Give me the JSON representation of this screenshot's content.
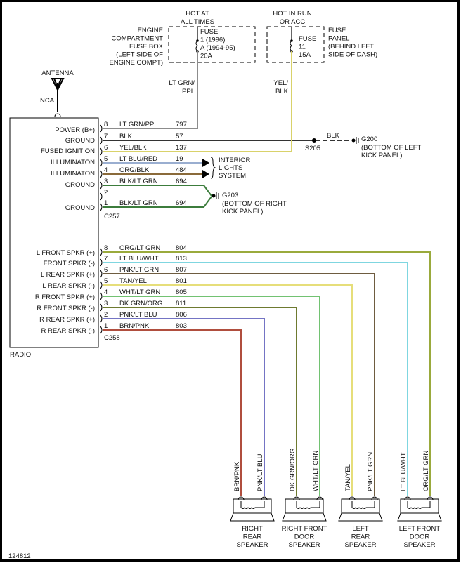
{
  "hot_at_all_times": [
    "HOT AT",
    "ALL TIMES"
  ],
  "hot_in_run": [
    "HOT IN RUN",
    "OR ACC"
  ],
  "engine_fuse_box": {
    "location": [
      "ENGINE",
      "COMPARTMENT",
      "FUSE BOX",
      "(LEFT SIDE OF",
      "ENGINE COMPT)"
    ],
    "fuse": [
      "FUSE",
      "1  (1996)",
      "A  (1994-95)",
      "20A"
    ]
  },
  "fuse_panel": {
    "location": [
      "FUSE",
      "PANEL",
      "(BEHIND LEFT",
      "SIDE OF DASH)"
    ],
    "fuse": [
      "FUSE",
      "11",
      "15A"
    ]
  },
  "feed_labels": {
    "power": [
      "LT GRN/",
      "PPL"
    ],
    "ignition": [
      "YEL/",
      "BLK"
    ]
  },
  "antenna": {
    "label": "ANTENNA",
    "note": "NCA"
  },
  "radio_label": "RADIO",
  "c257": {
    "connector": "C257",
    "pins": [
      {
        "pin": "8",
        "function": "POWER (B+)",
        "color": "LT GRN/PPL",
        "circuit": "797",
        "stroke": "#8c8c8c"
      },
      {
        "pin": "7",
        "function": "GROUND",
        "color": "BLK",
        "circuit": "57",
        "stroke": "#333333"
      },
      {
        "pin": "6",
        "function": "FUSED IGNITION",
        "color": "YEL/BLK",
        "circuit": "137",
        "stroke": "#d9d26a"
      },
      {
        "pin": "5",
        "function": "ILLUMINATON",
        "color": "LT BLU/RED",
        "circuit": "19",
        "stroke": "#9aaed0"
      },
      {
        "pin": "4",
        "function": "ILLUMINATON",
        "color": "ORG/BLK",
        "circuit": "484",
        "stroke": "#8a6a3a"
      },
      {
        "pin": "3",
        "function": "GROUND",
        "color": "BLK/LT GRN",
        "circuit": "694",
        "stroke": "#3c7c3c"
      },
      {
        "pin": "2",
        "function": "",
        "color": "",
        "circuit": "",
        "stroke": ""
      },
      {
        "pin": "1",
        "function": "GROUND",
        "color": "BLK/LT GRN",
        "circuit": "694",
        "stroke": "#3c7c3c"
      }
    ]
  },
  "splice": {
    "id": "S205",
    "wire": "BLK"
  },
  "g200": {
    "id": "G200",
    "location": [
      "(BOTTOM OF LEFT",
      "KICK PANEL)"
    ]
  },
  "g203": {
    "id": "G203",
    "location": [
      "(BOTTOM OF RIGHT",
      "KICK PANEL)"
    ]
  },
  "interior_lights": [
    "INTERIOR",
    "LIGHTS",
    "SYSTEM"
  ],
  "c258": {
    "connector": "C258",
    "pins": [
      {
        "pin": "8",
        "function": "L FRONT SPKR (+)",
        "color": "ORG/LT GRN",
        "circuit": "804",
        "stroke": "#9aaa3c"
      },
      {
        "pin": "7",
        "function": "L FRONT SPKR (-)",
        "color": "LT BLU/WHT",
        "circuit": "813",
        "stroke": "#7fd6e0"
      },
      {
        "pin": "6",
        "function": "L REAR SPKR (+)",
        "color": "PNK/LT GRN",
        "circuit": "807",
        "stroke": "#6e5c40"
      },
      {
        "pin": "5",
        "function": "L REAR SPKR (-)",
        "color": "TAN/YEL",
        "circuit": "801",
        "stroke": "#e6de7a"
      },
      {
        "pin": "4",
        "function": "R FRONT SPKR (+)",
        "color": "WHT/LT GRN",
        "circuit": "805",
        "stroke": "#72c272"
      },
      {
        "pin": "3",
        "function": "R FRONT SPKR (-)",
        "color": "DK GRN/ORG",
        "circuit": "811",
        "stroke": "#6e7a30"
      },
      {
        "pin": "2",
        "function": "R REAR SPKR (+)",
        "color": "PNK/LT BLU",
        "circuit": "806",
        "stroke": "#7474c4"
      },
      {
        "pin": "1",
        "function": "R REAR SPKR (-)",
        "color": "BRN/PNK",
        "circuit": "803",
        "stroke": "#b04e3e"
      }
    ]
  },
  "speakers": [
    {
      "name": [
        "RIGHT",
        "REAR",
        "SPEAKER"
      ],
      "wires": [
        "BRN/PNK",
        "PNK/LT BLU"
      ]
    },
    {
      "name": [
        "RIGHT FRONT",
        "DOOR",
        "SPEAKER"
      ],
      "wires": [
        "DK GRN/ORG",
        "WHT/LT GRN"
      ]
    },
    {
      "name": [
        "LEFT",
        "REAR",
        "SPEAKER"
      ],
      "wires": [
        "TAN/YEL",
        "PNK/LT GRN"
      ]
    },
    {
      "name": [
        "LEFT FRONT",
        "DOOR",
        "SPEAKER"
      ],
      "wires": [
        "LT BLU/WHT",
        "ORG/LT GRN"
      ]
    }
  ],
  "figure_id": "124812"
}
